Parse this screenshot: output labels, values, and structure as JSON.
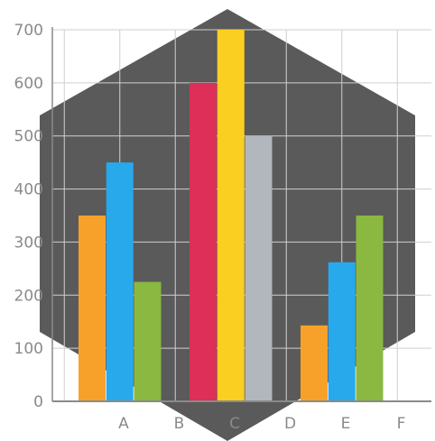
{
  "chart_data": {
    "type": "bar",
    "ylim": [
      0,
      700
    ],
    "yticks": [
      0,
      100,
      200,
      300,
      400,
      500,
      600,
      700
    ],
    "ytick_labels": [
      "0",
      "100",
      "200",
      "300",
      "400",
      "500",
      "600",
      "700"
    ],
    "categories": [
      "A",
      "B",
      "C",
      "D",
      "E",
      "F"
    ],
    "bars": [
      {
        "x": 1.0,
        "value": 350,
        "color": "#F7A12A"
      },
      {
        "x": 1.5,
        "value": 450,
        "color": "#27A9EC"
      },
      {
        "x": 2.0,
        "value": 225,
        "color": "#8AB840"
      },
      {
        "x": 3.0,
        "value": 600,
        "color": "#DD2F57"
      },
      {
        "x": 3.5,
        "value": 700,
        "color": "#FBCF21"
      },
      {
        "x": 4.0,
        "value": 500,
        "color": "#B1B7BC"
      },
      {
        "x": 5.0,
        "value": 143,
        "color": "#F7A12A"
      },
      {
        "x": 5.5,
        "value": 262,
        "color": "#27A9EC"
      },
      {
        "x": 6.0,
        "value": 350,
        "color": "#8AB840"
      }
    ],
    "grid": true,
    "legend": "none"
  },
  "colors": {
    "background_hexagon": "#5A5A5A",
    "grid": "#CFCFCF",
    "axis": "#8A8A8A",
    "text": "#8A8A8A"
  }
}
